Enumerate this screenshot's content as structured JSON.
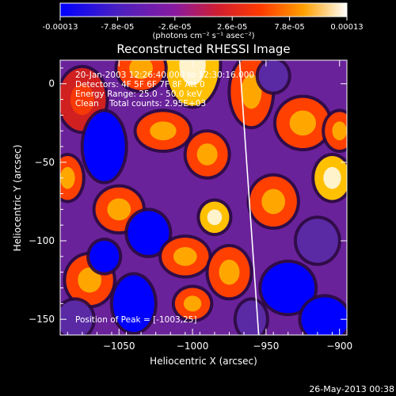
{
  "colorbar": {
    "tick_labels": [
      "-0.00013",
      "-7.8e-05",
      "-2.6e-05",
      "2.6e-05",
      "7.8e-05",
      "0.00013"
    ],
    "units": "(photons cm⁻² s⁻¹ asec⁻²)",
    "range": [
      -0.00013,
      0.00013
    ]
  },
  "chart_data": {
    "type": "heatmap",
    "title": "Reconstructed RHESSI Image",
    "xlabel": "Heliocentric X (arcsec)",
    "ylabel": "Heliocentric Y (arcsec)",
    "xlim": [
      -1090,
      -895
    ],
    "ylim": [
      -160,
      15
    ],
    "x_ticks": [
      -1050,
      -1000,
      -950,
      -900
    ],
    "y_ticks": [
      0,
      -50,
      -100,
      -150
    ],
    "x_tick_labels": [
      "−1050",
      "−1000",
      "−950",
      "−900"
    ],
    "y_tick_labels": [
      "0",
      "−50",
      "−100",
      "−150"
    ],
    "annotations": [
      "20-Jan-2003 12:26:40.000 to 12:30:16.000",
      "Detectors: 4F 5F 6F 7F 8F  Att 0",
      "Energy Range: 25.0 - 50.0 keV",
      "Clean    Total counts: 2.95E+03"
    ],
    "peak_label": "Position of Peak = [-1003,25]",
    "peak": [
      -1003,
      25
    ],
    "limb_line": [
      [
        -968,
        15
      ],
      [
        -955,
        -160
      ]
    ],
    "colormap": [
      "#0000ff",
      "#5a2aa5",
      "#8a1aa0",
      "#d02020",
      "#ff4000",
      "#ffc000",
      "#ffffff"
    ]
  },
  "footer": {
    "date": "26-May-2013 00:38"
  }
}
